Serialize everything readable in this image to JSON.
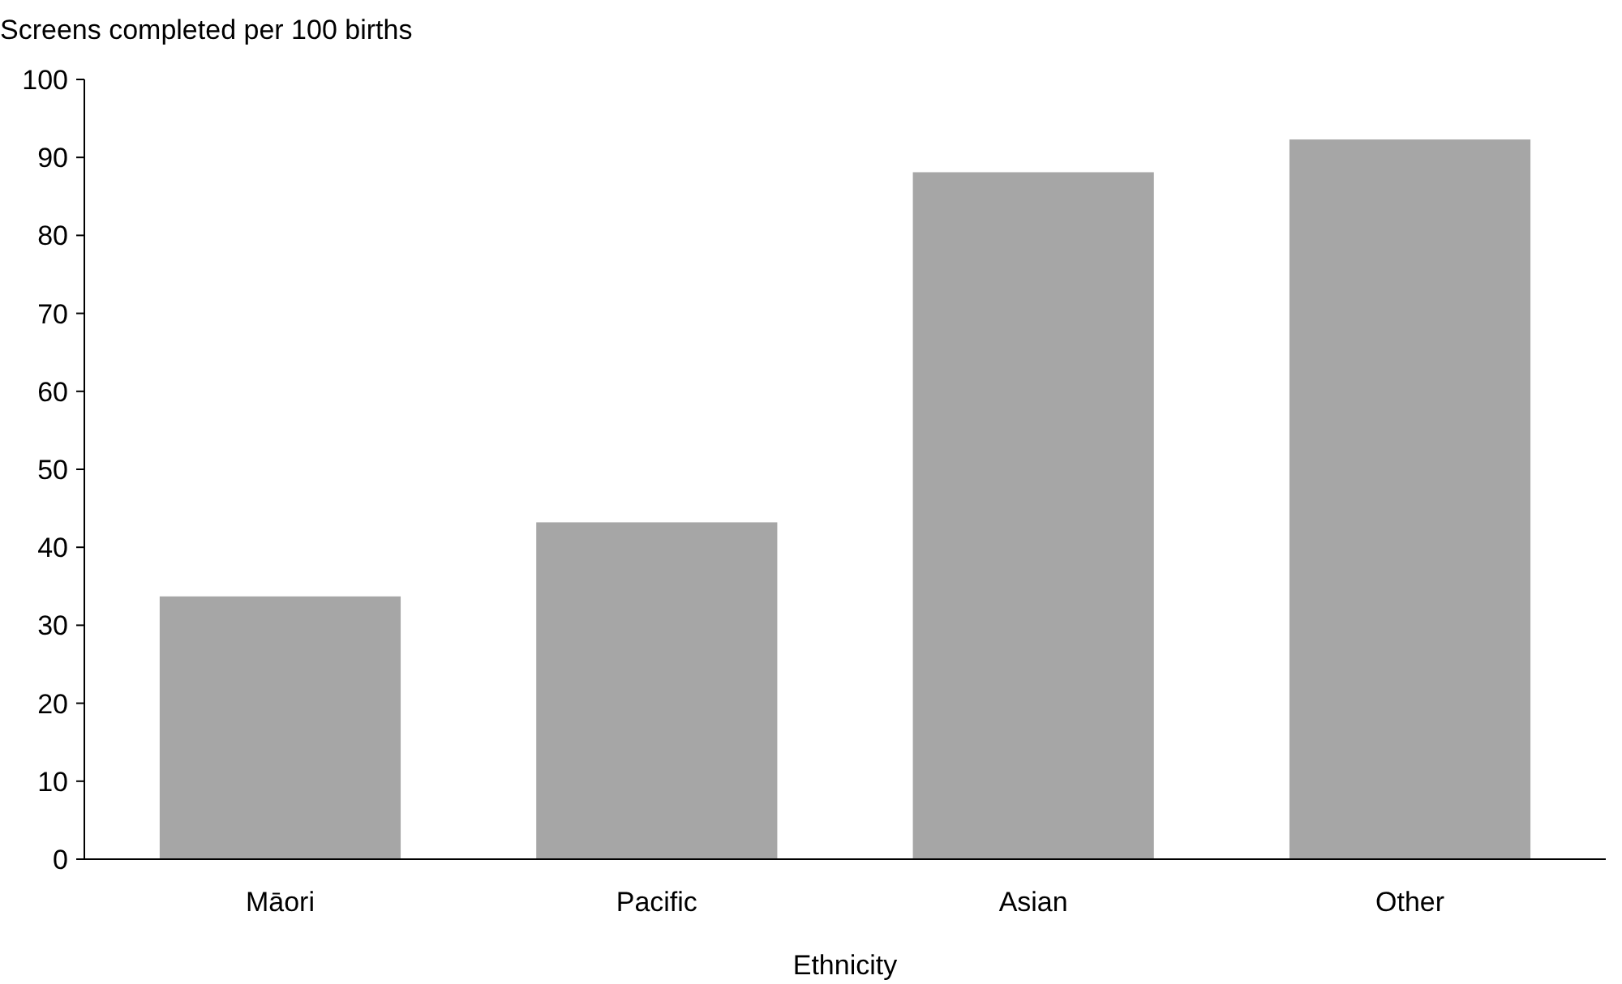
{
  "chart_data": {
    "type": "bar",
    "ylabel": "Screens completed per 100 births",
    "xlabel": "Ethnicity",
    "categories": [
      "Māori",
      "Pacific",
      "Asian",
      "Other"
    ],
    "values": [
      33.7,
      43.2,
      88.1,
      92.3
    ],
    "color": "#a6a6a6",
    "ylim": [
      0,
      100
    ],
    "yticks": [
      0,
      10,
      20,
      30,
      40,
      50,
      60,
      70,
      80,
      90,
      100
    ],
    "grid": false
  }
}
